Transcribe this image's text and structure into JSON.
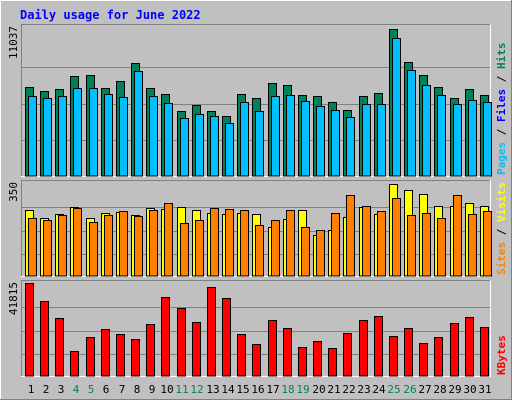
{
  "chart_data": {
    "title": "Daily usage for June 2022",
    "days": [
      "1",
      "2",
      "3",
      "4",
      "5",
      "6",
      "7",
      "8",
      "9",
      "10",
      "11",
      "12",
      "13",
      "14",
      "15",
      "16",
      "17",
      "18",
      "19",
      "20",
      "21",
      "22",
      "23",
      "24",
      "25",
      "26",
      "27",
      "28",
      "29",
      "30",
      "31"
    ],
    "weekend_days": [
      "4",
      "5",
      "11",
      "12",
      "18",
      "19",
      "25",
      "26"
    ],
    "colors": {
      "background": "#c0c0c0",
      "hits": "#00805c",
      "files": "#00c0ff",
      "sites": "#ff8000",
      "visits": "#ffff00",
      "kbytes": "#ff0000",
      "title": "#0000ff",
      "weekend_label": "#00805c",
      "weekday_label": "#000000"
    },
    "panels": [
      {
        "type": "bar",
        "y_max_label": "11037",
        "y_max": 11037,
        "legend": [
          {
            "text": "Pages",
            "color": "#00c0ff"
          },
          {
            "text": " / ",
            "color": "#000000"
          },
          {
            "text": "Files",
            "color": "#0000ff"
          },
          {
            "text": " / ",
            "color": "#000000"
          },
          {
            "text": "Hits",
            "color": "#00805c"
          }
        ],
        "series": [
          {
            "name": "Hits",
            "color": "#00805c",
            "values": [
              6650,
              6375,
              6565,
              7510,
              7590,
              6630,
              7130,
              8510,
              6570,
              6130,
              4850,
              5350,
              4850,
              4530,
              6180,
              5850,
              6960,
              6860,
              6110,
              5990,
              5550,
              4960,
              6010,
              6250,
              11037,
              8530,
              7620,
              6650,
              5880,
              6510,
              6090
            ]
          },
          {
            "name": "Files",
            "color": "#00c0ff",
            "values": [
              5990,
              5880,
              5990,
              6600,
              6570,
              6150,
              5900,
              7850,
              5990,
              5500,
              4340,
              4690,
              4490,
              3950,
              5540,
              4880,
              6030,
              6070,
              5660,
              5290,
              4930,
              4440,
              5420,
              5400,
              10370,
              7990,
              6850,
              6050,
              5390,
              5740,
              5570
            ]
          }
        ]
      },
      {
        "type": "bar",
        "y_max_label": "350",
        "y_max": 350,
        "legend": [
          {
            "text": "Sites",
            "color": "#ff8000"
          },
          {
            "text": " / ",
            "color": "#000000"
          },
          {
            "text": "Visits",
            "color": "#ffff00"
          }
        ],
        "series": [
          {
            "name": "Visits",
            "color": "#ffff00",
            "values": [
              250,
              218,
              235,
              261,
              220,
              237,
              241,
              231,
              255,
              252,
              258,
              250,
              237,
              234,
              237,
              232,
              185,
              213,
              248,
              153,
              174,
              221,
              261,
              234,
              345,
              323,
              310,
              262,
              263,
              275,
              262
            ]
          },
          {
            "name": "Sites",
            "color": "#ff8000",
            "values": [
              218,
              211,
              228,
              256,
              204,
              229,
              244,
              225,
              247,
              275,
              201,
              209,
              255,
              253,
              248,
              191,
              212,
              249,
              185,
              174,
              237,
              303,
              263,
              245,
              295,
              229,
              238,
              218,
              303,
              232,
              244
            ]
          }
        ]
      },
      {
        "type": "bar",
        "y_max_label": "41815",
        "y_max": 41815,
        "legend": [
          {
            "text": "KBytes",
            "color": "#ff0000"
          }
        ],
        "series": [
          {
            "name": "KBytes",
            "color": "#ff0000",
            "values": [
              41815,
              33500,
              26200,
              11300,
              17400,
              21200,
              18800,
              16600,
              23500,
              35400,
              30400,
              24100,
              40000,
              35200,
              19100,
              14300,
              25000,
              21600,
              12900,
              15600,
              12700,
              19400,
              25000,
              26800,
              17800,
              21800,
              14900,
              17700,
              24000,
              26400,
              22200
            ]
          }
        ]
      }
    ]
  }
}
